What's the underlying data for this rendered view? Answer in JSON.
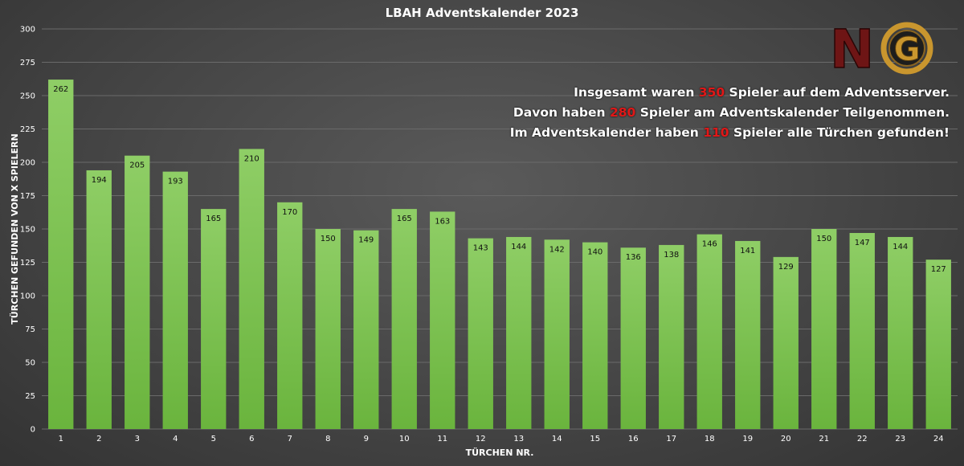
{
  "chart_data": {
    "type": "bar",
    "title": "LBAH Adventskalender 2023",
    "xlabel": "TÜRCHEN NR.",
    "ylabel": "TÜRCHEN GEFUNDEN VON X SPIELERN",
    "ylim": [
      0,
      300
    ],
    "yticks": [
      0,
      25,
      50,
      75,
      100,
      125,
      150,
      175,
      200,
      225,
      250,
      275,
      300
    ],
    "grid": true,
    "categories": [
      "1",
      "2",
      "3",
      "4",
      "5",
      "6",
      "7",
      "8",
      "9",
      "10",
      "11",
      "12",
      "13",
      "14",
      "15",
      "16",
      "17",
      "18",
      "19",
      "20",
      "21",
      "22",
      "23",
      "24"
    ],
    "values": [
      262,
      194,
      205,
      193,
      165,
      210,
      170,
      150,
      149,
      165,
      163,
      143,
      144,
      142,
      140,
      136,
      138,
      146,
      141,
      129,
      150,
      147,
      144,
      127
    ],
    "bar_color": "#7cc154"
  },
  "info": {
    "line1": {
      "pre": "Insgesamt waren ",
      "num": "350",
      "post": " Spieler auf dem Adventsserver."
    },
    "line2": {
      "pre": "Davon haben ",
      "num": "280",
      "post": " Spieler am Adventskalender Teilgenommen."
    },
    "line3": {
      "pre": "Im Adventskalender haben ",
      "num": "110",
      "post": " Spieler alle Türchen gefunden!"
    }
  },
  "logo": {
    "text": "NG",
    "colors": {
      "n": "#8b1a1a",
      "g": "#c9962e"
    }
  }
}
